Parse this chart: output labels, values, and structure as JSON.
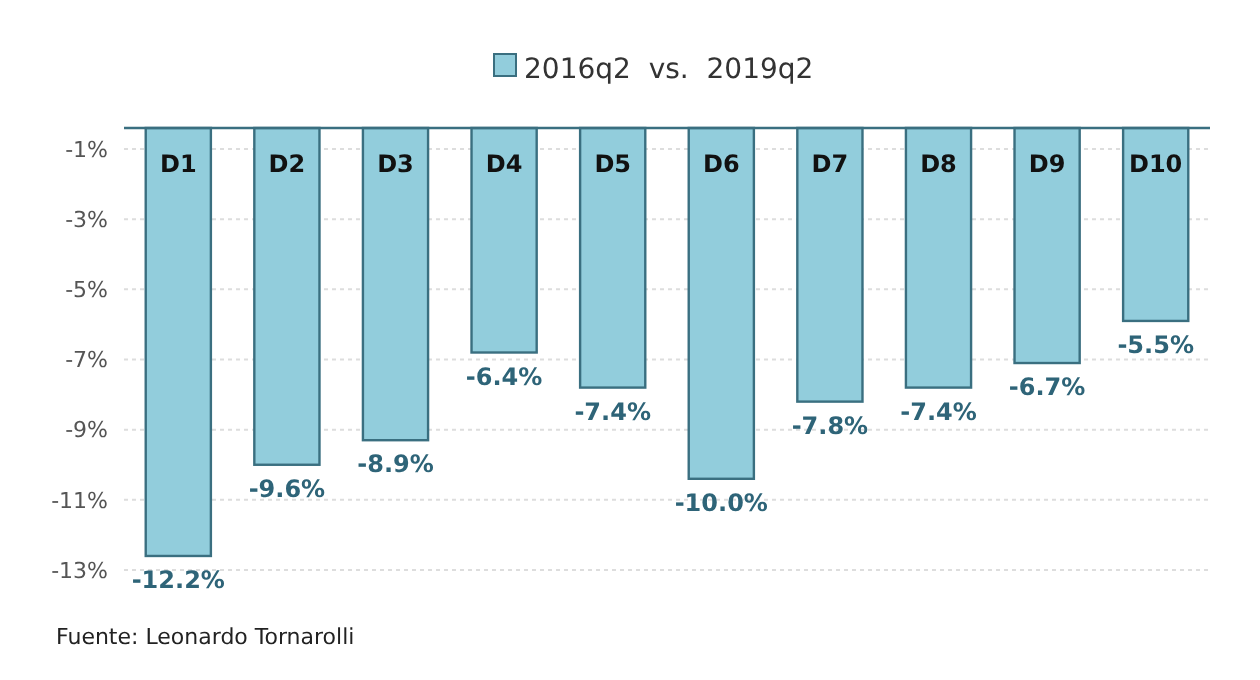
{
  "chart_data": {
    "type": "bar",
    "categories": [
      "D1",
      "D2",
      "D3",
      "D4",
      "D5",
      "D6",
      "D7",
      "D8",
      "D9",
      "D10"
    ],
    "series": [
      {
        "name": "2016q2  vs.  2019q2",
        "color": "#92cddc",
        "values": [
          -12.2,
          -9.6,
          -8.9,
          -6.4,
          -7.4,
          -10.0,
          -7.8,
          -7.4,
          -6.7,
          -5.5
        ]
      }
    ],
    "ylim": [
      -12.6,
      0
    ],
    "yticks": [
      {
        "value": -0.6,
        "label": "-1%"
      },
      {
        "value": -2.6,
        "label": "-3%"
      },
      {
        "value": -4.6,
        "label": "-5%"
      },
      {
        "value": -6.6,
        "label": "-7%"
      },
      {
        "value": -8.6,
        "label": "-9%"
      },
      {
        "value": -10.6,
        "label": "-11%"
      },
      {
        "value": -12.6,
        "label": "-13%"
      }
    ],
    "value_labels": [
      "-12.2%",
      "-9.6%",
      "-8.9%",
      "-6.4%",
      "-7.4%",
      "-10.0%",
      "-7.8%",
      "-7.4%",
      "-6.7%",
      "-5.5%"
    ],
    "grid": "y",
    "legend": "top",
    "annotations": [
      "Fuente: Leonardo Tornarolli"
    ]
  }
}
